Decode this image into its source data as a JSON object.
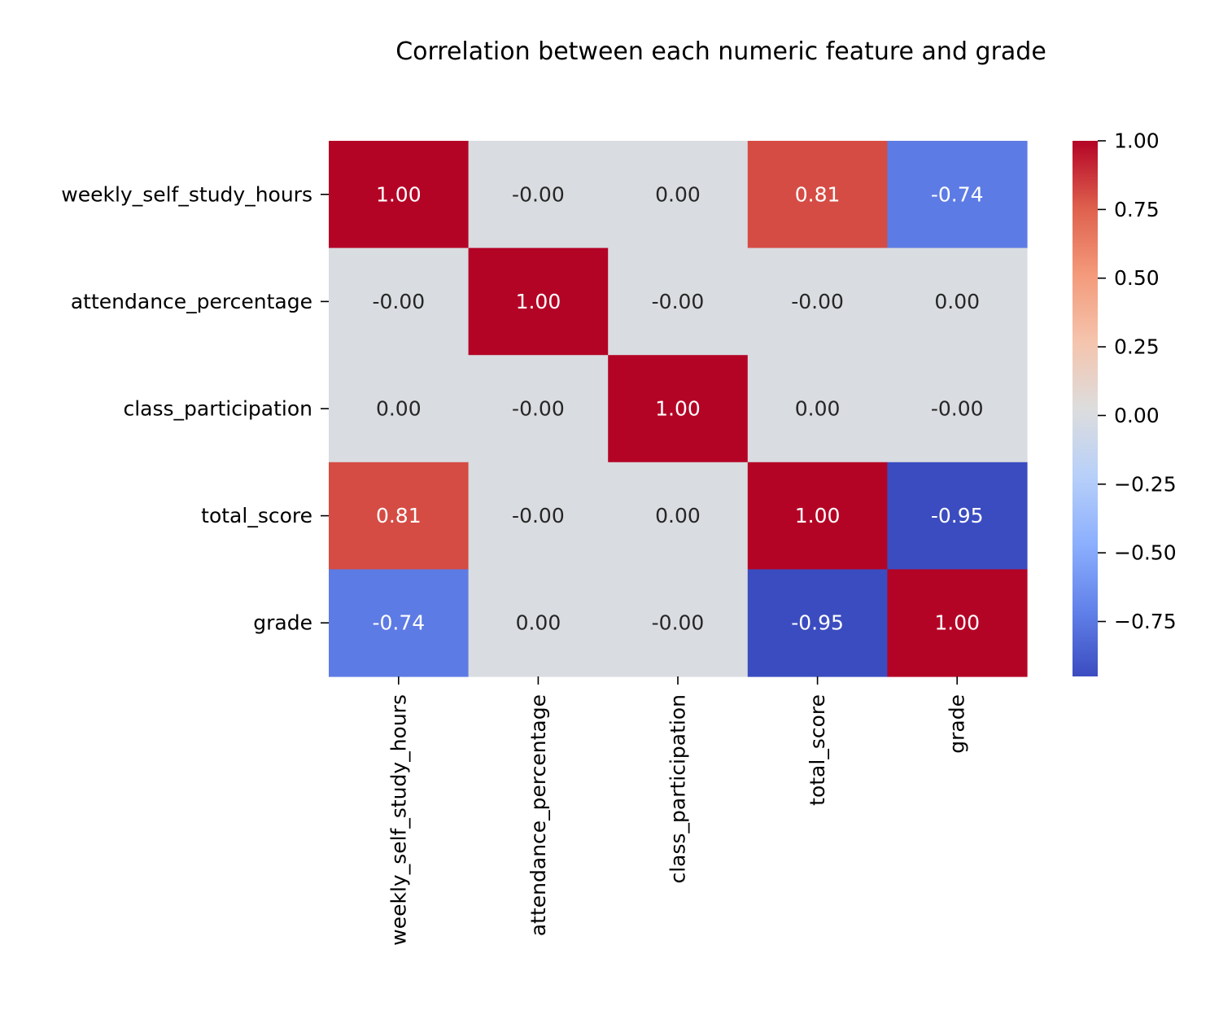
{
  "chart_data": {
    "type": "heatmap",
    "title": "Correlation between each numeric feature and grade",
    "row_labels": [
      "weekly_self_study_hours",
      "attendance_percentage",
      "class_participation",
      "total_score",
      "grade"
    ],
    "col_labels": [
      "weekly_self_study_hours",
      "attendance_percentage",
      "class_participation",
      "total_score",
      "grade"
    ],
    "values": [
      [
        1.0,
        -0.0,
        0.0,
        0.81,
        -0.74
      ],
      [
        -0.0,
        1.0,
        -0.0,
        -0.0,
        0.0
      ],
      [
        0.0,
        -0.0,
        1.0,
        0.0,
        -0.0
      ],
      [
        0.81,
        -0.0,
        0.0,
        1.0,
        -0.95
      ],
      [
        -0.74,
        0.0,
        -0.0,
        -0.95,
        1.0
      ]
    ],
    "annotations": [
      [
        "1.00",
        "-0.00",
        "0.00",
        "0.81",
        "-0.74"
      ],
      [
        "-0.00",
        "1.00",
        "-0.00",
        "-0.00",
        "0.00"
      ],
      [
        "0.00",
        "-0.00",
        "1.00",
        "0.00",
        "-0.00"
      ],
      [
        "0.81",
        "-0.00",
        "0.00",
        "1.00",
        "-0.95"
      ],
      [
        "-0.74",
        "0.00",
        "-0.00",
        "-0.95",
        "1.00"
      ]
    ],
    "colormap": "coolwarm",
    "vmin": -0.95,
    "vmax": 1.0,
    "colorbar": {
      "ticks": [
        1.0,
        0.75,
        0.5,
        0.25,
        0.0,
        -0.25,
        -0.5,
        -0.75
      ],
      "tick_labels": [
        "1.00",
        "0.75",
        "0.50",
        "0.25",
        "0.00",
        "−0.25",
        "−0.50",
        "−0.75"
      ],
      "placement": "right"
    },
    "xlabel": "",
    "ylabel": "",
    "grid": false
  }
}
